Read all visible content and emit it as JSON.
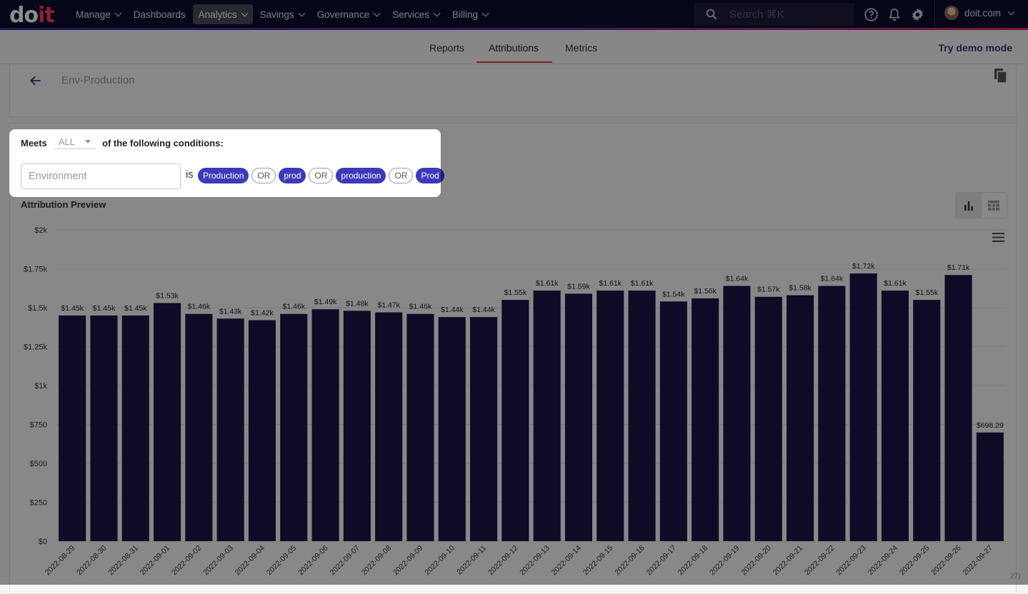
{
  "nav": {
    "logo_left": "do",
    "logo_right": "it",
    "items": [
      {
        "label": "Manage",
        "chevron": true
      },
      {
        "label": "Dashboards",
        "chevron": false
      },
      {
        "label": "Analytics",
        "chevron": true,
        "active": true
      },
      {
        "label": "Savings",
        "chevron": true
      },
      {
        "label": "Governance",
        "chevron": true
      },
      {
        "label": "Services",
        "chevron": true
      },
      {
        "label": "Billing",
        "chevron": true
      }
    ],
    "search_placeholder": "Search ⌘K",
    "account": "doit.com"
  },
  "subnav": {
    "tabs": [
      "Reports",
      "Attributions",
      "Metrics"
    ],
    "active_tab": "Attributions",
    "demo_link": "Try demo mode"
  },
  "attribution": {
    "name": "Env-Production"
  },
  "conditions": {
    "meets_label": "Meets",
    "operator": "ALL",
    "suffix": "of the following conditions:",
    "dimension_placeholder": "Environment",
    "is_label": "is",
    "values": [
      "Production",
      "prod",
      "production",
      "Prod"
    ],
    "or_label": "OR"
  },
  "preview": {
    "title": "Attribution Preview",
    "corner_text": "27)"
  },
  "colors": {
    "bar": "#1a1446",
    "chip": "#3c3ab8",
    "accent": "#e23b55",
    "topbar": "#0b0b2e"
  },
  "chart_data": {
    "type": "bar",
    "categories": [
      "2022-08-29",
      "2022-08-30",
      "2022-08-31",
      "2022-09-01",
      "2022-09-02",
      "2022-09-03",
      "2022-09-04",
      "2022-09-05",
      "2022-09-06",
      "2022-09-07",
      "2022-09-08",
      "2022-09-09",
      "2022-09-10",
      "2022-09-11",
      "2022-09-12",
      "2022-09-13",
      "2022-09-14",
      "2022-09-15",
      "2022-09-16",
      "2022-09-17",
      "2022-09-18",
      "2022-09-19",
      "2022-09-20",
      "2022-09-21",
      "2022-09-22",
      "2022-09-23",
      "2022-09-24",
      "2022-09-25",
      "2022-09-26",
      "2022-09-27"
    ],
    "values": [
      1450,
      1450,
      1450,
      1530,
      1460,
      1430,
      1420,
      1460,
      1490,
      1480,
      1470,
      1460,
      1440,
      1440,
      1550,
      1610,
      1590,
      1610,
      1610,
      1540,
      1560,
      1640,
      1570,
      1580,
      1640,
      1720,
      1610,
      1550,
      1710,
      698.29
    ],
    "data_labels": [
      "$1.45k",
      "$1.45k",
      "$1.45k",
      "$1.53k",
      "$1.46k",
      "$1.43k",
      "$1.42k",
      "$1.46k",
      "$1.49k",
      "$1.48k",
      "$1.47k",
      "$1.46k",
      "$1.44k",
      "$1.44k",
      "$1.55k",
      "$1.61k",
      "$1.59k",
      "$1.61k",
      "$1.61k",
      "$1.54k",
      "$1.56k",
      "$1.64k",
      "$1.57k",
      "$1.58k",
      "$1.64k",
      "$1.72k",
      "$1.61k",
      "$1.55k",
      "$1.71k",
      "$698.29"
    ],
    "y_ticks": [
      0,
      250,
      500,
      750,
      1000,
      1250,
      1500,
      1750,
      2000
    ],
    "y_tick_labels": [
      "$0",
      "$250",
      "$500",
      "$750",
      "$1k",
      "$1.25k",
      "$1.5k",
      "$1.75k",
      "$2k"
    ],
    "ylim": [
      0,
      2000
    ],
    "grid": true,
    "xlabel": "",
    "ylabel": "",
    "title": ""
  }
}
